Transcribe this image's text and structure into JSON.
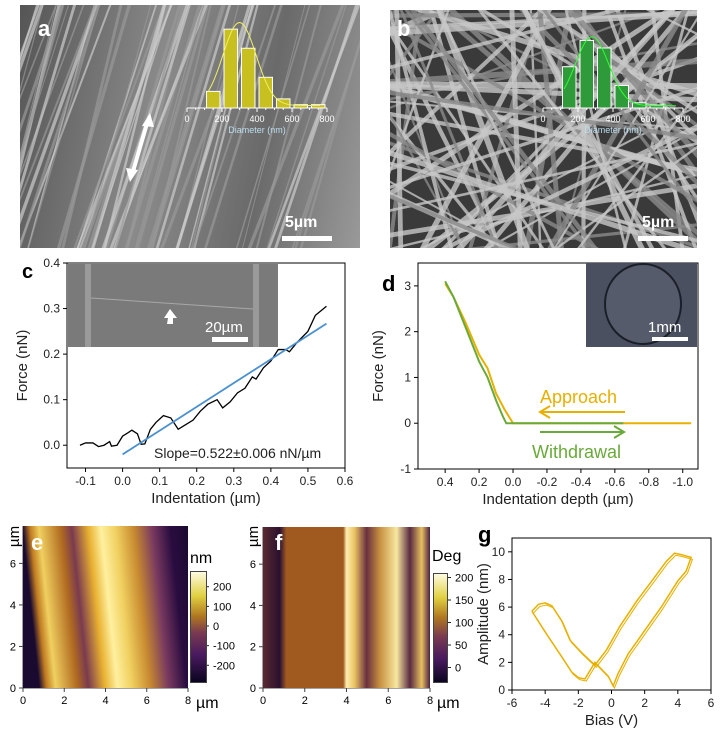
{
  "panels": {
    "a": {
      "label": "a",
      "scale_bar": "5µm"
    },
    "b": {
      "label": "b",
      "scale_bar": "5µm"
    },
    "c": {
      "label": "c",
      "inset_scale_bar": "20µm"
    },
    "d": {
      "label": "d",
      "inset_scale_bar": "1mm"
    },
    "e": {
      "label": "e",
      "y_unit": "µm",
      "x_unit": "µm",
      "colorbar_unit": "nm"
    },
    "f": {
      "label": "f",
      "y_unit": "µm",
      "x_unit": "µm",
      "colorbar_unit": "Deg"
    },
    "g": {
      "label": "g"
    }
  },
  "colors": {
    "hist_a": "#c8c020",
    "hist_b": "#2e9a3a",
    "fit_line_c": "#4a90d0",
    "approach": "#e8b000",
    "withdrawal": "#6aaa3a",
    "loop_g": "#e8b000"
  },
  "chart_data": [
    {
      "id": "a-inset",
      "type": "bar",
      "xlabel": "Diameter (nm)",
      "xticks": [
        "0",
        "200",
        "400",
        "600",
        "800"
      ],
      "xlim": [
        0,
        800
      ],
      "bins": [
        150,
        250,
        350,
        450,
        550,
        650,
        750
      ],
      "values": [
        0.2,
        0.95,
        0.72,
        0.37,
        0.11,
        0.04,
        0.04
      ]
    },
    {
      "id": "b-inset",
      "type": "bar",
      "xlabel": "Diameter (nm)",
      "xticks": [
        "0",
        "200",
        "400",
        "600",
        "800"
      ],
      "xlim": [
        0,
        800
      ],
      "bins": [
        150,
        250,
        350,
        450,
        550,
        650
      ],
      "values": [
        0.55,
        0.9,
        0.8,
        0.3,
        0.07,
        0.04
      ]
    },
    {
      "id": "c",
      "type": "line",
      "xlabel": "Indentation (µm)",
      "ylabel": "Force (nN)",
      "xlim": [
        -0.15,
        0.6
      ],
      "ylim": [
        -0.05,
        0.4
      ],
      "xticks": [
        "-0.1",
        "0.0",
        "0.1",
        "0.2",
        "0.3",
        "0.4",
        "0.5",
        "0.6"
      ],
      "yticks": [
        "0.0",
        "0.1",
        "0.2",
        "0.3",
        "0.4"
      ],
      "annotation": "Slope=0.522±0.006 nN/µm",
      "series": [
        {
          "x": [
            -0.115,
            -0.1,
            -0.08,
            -0.065,
            -0.05,
            -0.035,
            -0.03,
            -0.015,
            0,
            0.01,
            0.025,
            0.04,
            0.05,
            0.06,
            0.075,
            0.09,
            0.11,
            0.13,
            0.15,
            0.17,
            0.19,
            0.21,
            0.23,
            0.255,
            0.27,
            0.29,
            0.31,
            0.33,
            0.35,
            0.36,
            0.38,
            0.4,
            0.42,
            0.44,
            0.45,
            0.47,
            0.5,
            0.52,
            0.55
          ],
          "y": [
            0.0,
            0.005,
            0.005,
            -0.003,
            0.0,
            0.008,
            -0.002,
            0.0,
            0.02,
            0.025,
            0.033,
            0.025,
            0.002,
            0.003,
            0.035,
            0.05,
            0.065,
            0.06,
            0.035,
            0.045,
            0.055,
            0.075,
            0.09,
            0.1,
            0.082,
            0.095,
            0.115,
            0.125,
            0.15,
            0.145,
            0.17,
            0.185,
            0.21,
            0.21,
            0.205,
            0.225,
            0.25,
            0.285,
            0.305
          ]
        },
        {
          "name": "fit",
          "x": [
            0.0,
            0.55
          ],
          "y": [
            -0.02,
            0.267
          ]
        }
      ]
    },
    {
      "id": "d",
      "type": "line",
      "xlabel": "Indentation depth (µm)",
      "ylabel": "Force (nN)",
      "xlim": [
        0.56,
        -1.09
      ],
      "ylim": [
        -1,
        3.5
      ],
      "xticks": [
        "0.4",
        "0.2",
        "0.0",
        "-0.2",
        "-0.4",
        "-0.6",
        "-0.8",
        "-1.0"
      ],
      "yticks": [
        "-1",
        "0",
        "1",
        "2",
        "3"
      ],
      "series": [
        {
          "name": "Approach",
          "x": [
            0.4,
            0.35,
            0.28,
            0.2,
            0.15,
            0.1,
            0.05,
            0.0,
            -1.05
          ],
          "y": [
            3.05,
            2.75,
            2.2,
            1.5,
            1.2,
            0.65,
            0.3,
            0.0,
            0.0
          ]
        },
        {
          "name": "Withdrawal",
          "x": [
            0.4,
            0.35,
            0.28,
            0.2,
            0.15,
            0.1,
            0.06,
            0.04,
            -0.65
          ],
          "y": [
            3.1,
            2.75,
            2.1,
            1.35,
            1.0,
            0.5,
            0.15,
            0.0,
            0.0
          ]
        }
      ]
    },
    {
      "id": "e",
      "type": "heatmap",
      "xticks": [
        "0",
        "2",
        "4",
        "6",
        "8"
      ],
      "yticks": [
        "0",
        "2",
        "4",
        "6"
      ],
      "xlim": [
        0,
        8
      ],
      "ylim": [
        0,
        7.8
      ],
      "colorbar_ticks": [
        "200",
        "100",
        "0",
        "-100",
        "-200"
      ],
      "colorbar_range": [
        -280,
        280
      ]
    },
    {
      "id": "f",
      "type": "heatmap",
      "xticks": [
        "0",
        "2",
        "4",
        "6",
        "8"
      ],
      "yticks": [
        "0",
        "2",
        "4",
        "6"
      ],
      "xlim": [
        0,
        8
      ],
      "ylim": [
        0,
        7.8
      ],
      "colorbar_ticks": [
        "200",
        "150",
        "100",
        "50",
        "0"
      ],
      "colorbar_range": [
        -30,
        210
      ]
    },
    {
      "id": "g",
      "type": "line",
      "xlabel": "Bias (V)",
      "ylabel": "Amplitude (nm)",
      "xlim": [
        -6,
        6
      ],
      "ylim": [
        0,
        11
      ],
      "xticks": [
        "-6",
        "-4",
        "-2",
        "0",
        "2",
        "4",
        "6"
      ],
      "yticks": [
        "0",
        "2",
        "4",
        "6",
        "8",
        "10"
      ],
      "series": [
        {
          "x": [
            -4.8,
            -4.4,
            -4,
            -3.6,
            -3,
            -2.5,
            -1.8,
            -1,
            -0.3,
            0.5,
            1.5,
            2.5,
            3.3,
            3.8,
            4.2,
            4.8,
            4.5,
            4,
            3,
            2,
            1,
            0.4,
            0.1,
            -0.2,
            -1,
            -1.6,
            -2,
            -2.4,
            -3,
            -4,
            -4.8
          ],
          "y": [
            5.7,
            6.2,
            6.3,
            6.1,
            5,
            3.6,
            2.7,
            1.8,
            2.9,
            4.6,
            6.4,
            8,
            9.3,
            9.9,
            9.8,
            9.6,
            8.6,
            7.9,
            6,
            4.3,
            2.6,
            1.2,
            0.3,
            1.0,
            2.0,
            0.8,
            0.9,
            1.3,
            2.4,
            4.2,
            5.7
          ]
        }
      ]
    }
  ]
}
